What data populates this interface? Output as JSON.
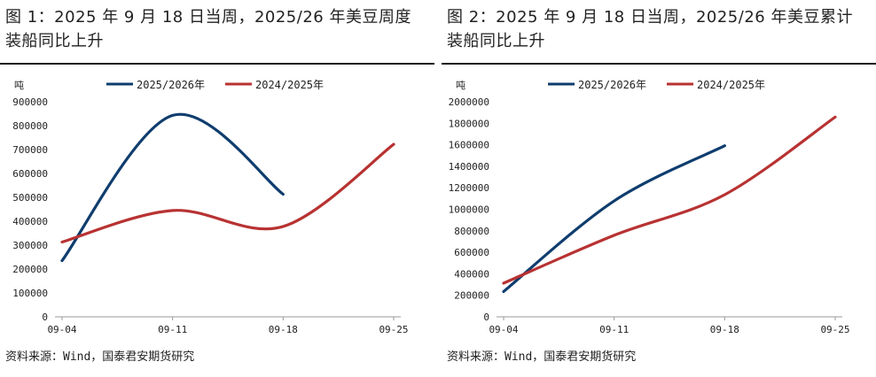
{
  "charts": [
    {
      "title": "图 1：2025 年 9 月 18 日当周，2025/26 年美豆周度装船同比上升",
      "title_line1": "图 1：2025 年 9 月 18 日当周，2025/26 年美豆周度",
      "title_line2": "装船同比上升",
      "source": "资料来源：Wind，国泰君安期货研究"
    },
    {
      "title": "图 2：2025 年 9 月 18 日当周，2025/26 年美豆累计装船同比上升",
      "title_line1": "图 2：2025 年 9 月 18 日当周，2025/26 年美豆累计",
      "title_line2": "装船同比上升",
      "source": "资料来源：Wind，国泰君安期货研究"
    }
  ],
  "colors": {
    "series_2025": "#0f3d6e",
    "series_2024": "#b83232"
  },
  "chart_data": [
    {
      "type": "line",
      "unit": "吨",
      "x": [
        "09-04",
        "09-11",
        "09-18",
        "09-25"
      ],
      "ylim": [
        0,
        900000
      ],
      "yticks": [
        "0",
        "100000",
        "200000",
        "300000",
        "400000",
        "500000",
        "600000",
        "700000",
        "800000",
        "900000"
      ],
      "legend": "top",
      "series": [
        {
          "name": "2025/2026年",
          "values": [
            235000,
            843000,
            513000,
            null
          ]
        },
        {
          "name": "2024/2025年",
          "values": [
            313000,
            445000,
            378000,
            722000
          ]
        }
      ]
    },
    {
      "type": "line",
      "unit": "吨",
      "x": [
        "09-04",
        "09-11",
        "09-18",
        "09-25"
      ],
      "ylim": [
        0,
        2000000
      ],
      "yticks": [
        "0",
        "200000",
        "400000",
        "600000",
        "800000",
        "1000000",
        "1200000",
        "1400000",
        "1600000",
        "1800000",
        "2000000"
      ],
      "legend": "top",
      "series": [
        {
          "name": "2025/2026年",
          "values": [
            235000,
            1078000,
            1591000,
            null
          ]
        },
        {
          "name": "2024/2025年",
          "values": [
            313000,
            758000,
            1136000,
            1858000
          ]
        }
      ]
    }
  ]
}
